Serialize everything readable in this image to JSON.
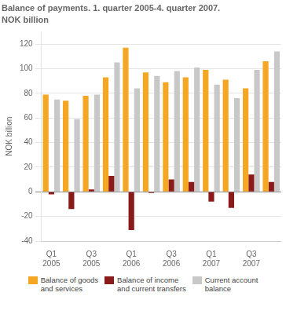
{
  "chart_data": {
    "type": "bar",
    "title": "Balance of payments. 1. quarter 2005-4. quarter 2007.",
    "subtitle": "NOK billion",
    "y_label": "NOK billion",
    "categories": [
      "Q1\n2005",
      null,
      "Q3\n2005",
      null,
      "Q1\n2006",
      null,
      "Q3\n2006",
      null,
      "Q1\n2007",
      null,
      "Q3\n2007",
      null
    ],
    "series": [
      {
        "name": "Balance of goods\nand services",
        "color": "#f5a623",
        "values": [
          79,
          74,
          78,
          93,
          117,
          97,
          89,
          93,
          99,
          91,
          84,
          106
        ]
      },
      {
        "name": "Balance of income\nand current transfers",
        "color": "#8b1a1a",
        "values": [
          -2,
          -14,
          2,
          13,
          -31,
          -1,
          10,
          8,
          -8,
          -13,
          14,
          8
        ]
      },
      {
        "name": "Current account\nbalance",
        "color": "#c8c8c8",
        "values": [
          75,
          59,
          79,
          105,
          84,
          94,
          98,
          101,
          87,
          76,
          99,
          114
        ]
      }
    ],
    "ylim": [
      -40,
      130
    ],
    "yticks": [
      -40,
      -20,
      0,
      20,
      40,
      60,
      80,
      100,
      120
    ],
    "grid": true,
    "legend": "bottom"
  }
}
